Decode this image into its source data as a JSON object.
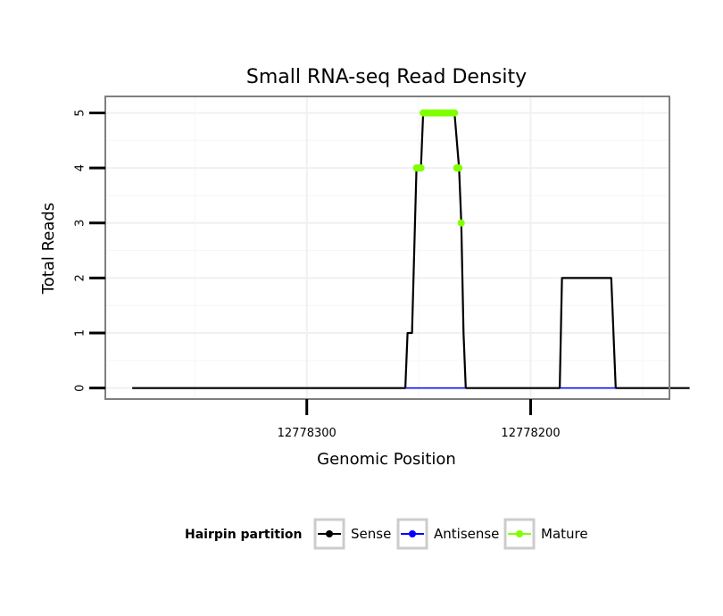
{
  "chart_data": {
    "type": "line",
    "title": "Small RNA-seq Read Density",
    "xlabel": "Genomic Position",
    "ylabel": "Total Reads",
    "x_reversed": true,
    "xlim": [
      12778390,
      12778138
    ],
    "ylim": [
      -0.2,
      5.3
    ],
    "xticks": [
      {
        "value": 12778300,
        "label": "12778300"
      },
      {
        "value": 12778200,
        "label": "12778200"
      }
    ],
    "yticks": [
      {
        "value": 0,
        "label": "0"
      },
      {
        "value": 1,
        "label": "1"
      },
      {
        "value": 2,
        "label": "2"
      },
      {
        "value": 3,
        "label": "3"
      },
      {
        "value": 4,
        "label": "4"
      },
      {
        "value": 5,
        "label": "5"
      }
    ],
    "grid": true,
    "legend": {
      "title": "Hairpin partition",
      "position": "bottom",
      "entries": [
        {
          "label": "Sense",
          "color": "#000000"
        },
        {
          "label": "Antisense",
          "color": "#0000ff"
        },
        {
          "label": "Mature",
          "color": "#7fff00"
        }
      ]
    },
    "series": [
      {
        "name": "Sense",
        "color": "#000000",
        "points": [
          [
            12778378,
            0
          ],
          [
            12778256,
            0
          ],
          [
            12778255,
            1
          ],
          [
            12778253,
            1
          ],
          [
            12778251,
            4
          ],
          [
            12778249,
            4
          ],
          [
            12778248,
            5
          ],
          [
            12778234,
            5
          ],
          [
            12778232,
            4
          ],
          [
            12778231,
            3
          ],
          [
            12778230,
            1
          ],
          [
            12778229,
            0
          ],
          [
            12778187,
            0
          ],
          [
            12778186,
            2
          ],
          [
            12778164,
            2
          ],
          [
            12778162,
            0
          ],
          [
            12778129,
            0
          ]
        ]
      },
      {
        "name": "Antisense",
        "color": "#0000ff",
        "points": [
          [
            12778256,
            0
          ],
          [
            12778229,
            0
          ],
          [
            12778187,
            0
          ],
          [
            12778162,
            0
          ]
        ]
      },
      {
        "name": "Mature",
        "color": "#7fff00",
        "points": [
          [
            12778251,
            4
          ],
          [
            12778250,
            4
          ],
          [
            12778249,
            4
          ],
          [
            12778248,
            5
          ],
          [
            12778247,
            5
          ],
          [
            12778246,
            5
          ],
          [
            12778245,
            5
          ],
          [
            12778244,
            5
          ],
          [
            12778243,
            5
          ],
          [
            12778242,
            5
          ],
          [
            12778241,
            5
          ],
          [
            12778240,
            5
          ],
          [
            12778239,
            5
          ],
          [
            12778238,
            5
          ],
          [
            12778237,
            5
          ],
          [
            12778236,
            5
          ],
          [
            12778235,
            5
          ],
          [
            12778234,
            5
          ],
          [
            12778233,
            4
          ],
          [
            12778232,
            4
          ],
          [
            12778231,
            3
          ]
        ]
      }
    ]
  }
}
